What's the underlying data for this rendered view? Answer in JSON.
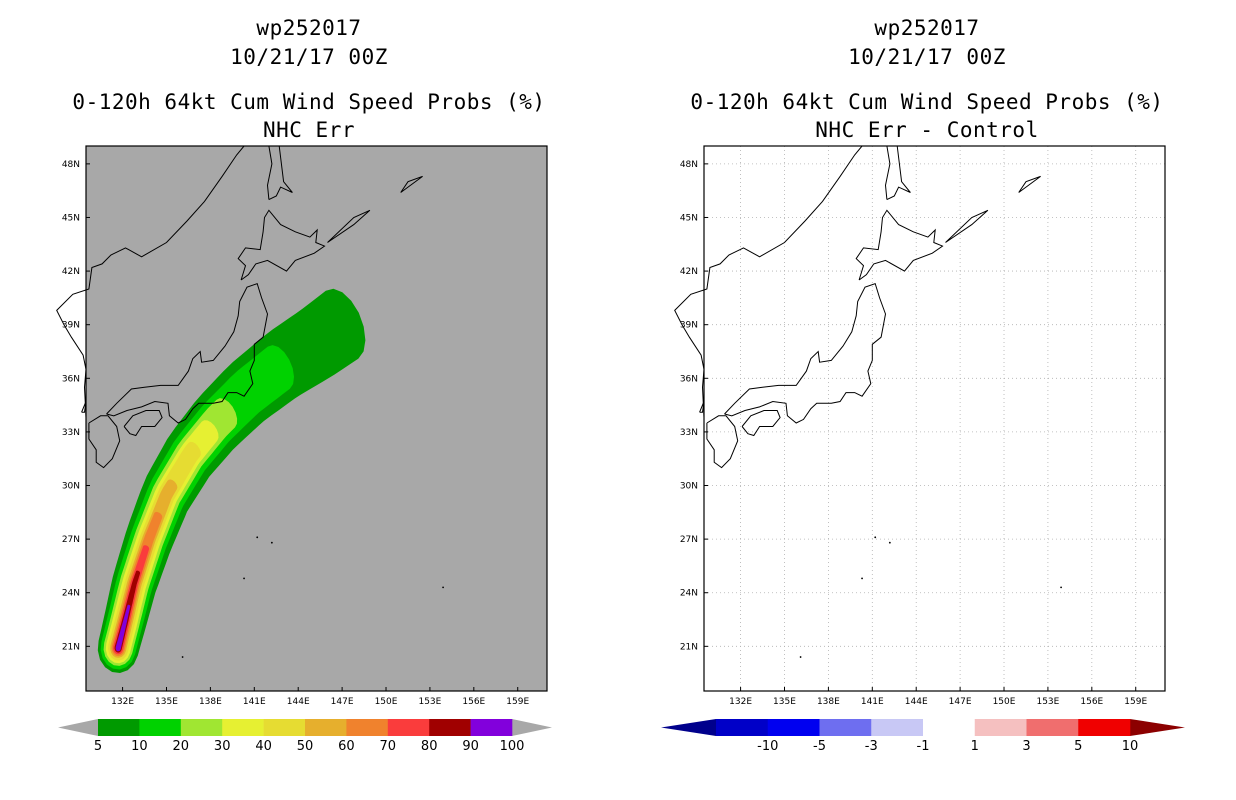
{
  "chart_data": [
    {
      "type": "heatmap",
      "storm_id": "wp252017",
      "date_label": "10/21/17 00Z",
      "title": "0-120h 64kt Cum Wind Speed Probs (%)",
      "subtitle": "NHC Err",
      "x_ticks": [
        "132E",
        "135E",
        "138E",
        "141E",
        "144E",
        "147E",
        "150E",
        "153E",
        "156E",
        "159E"
      ],
      "x_tick_values": [
        132,
        135,
        138,
        141,
        144,
        147,
        150,
        153,
        156,
        159
      ],
      "y_ticks": [
        "21N",
        "24N",
        "27N",
        "30N",
        "33N",
        "36N",
        "39N",
        "42N",
        "45N",
        "48N"
      ],
      "y_tick_values": [
        21,
        24,
        27,
        30,
        33,
        36,
        39,
        42,
        45,
        48
      ],
      "xlim": [
        129.5,
        161.0
      ],
      "ylim": [
        18.5,
        49.0
      ],
      "background": "#a8a8a8",
      "colorbar": {
        "labels": [
          "5",
          "10",
          "20",
          "30",
          "40",
          "50",
          "60",
          "70",
          "80",
          "90",
          "100"
        ],
        "colors": [
          "#009a00",
          "#00d200",
          "#a0e632",
          "#e6f032",
          "#e6dc32",
          "#e6af2d",
          "#f0822d",
          "#fa3c3c",
          "#a00000",
          "#8200dc"
        ],
        "end_color": "#a8a8a8"
      },
      "prob_levels": [
        5,
        10,
        20,
        30,
        40,
        50,
        60,
        70,
        80,
        90
      ]
    },
    {
      "type": "heatmap",
      "storm_id": "wp252017",
      "date_label": "10/21/17 00Z",
      "title": "0-120h 64kt Cum Wind Speed Probs (%)",
      "subtitle": "NHC Err - Control",
      "x_ticks": [
        "132E",
        "135E",
        "138E",
        "141E",
        "144E",
        "147E",
        "150E",
        "153E",
        "156E",
        "159E"
      ],
      "x_tick_values": [
        132,
        135,
        138,
        141,
        144,
        147,
        150,
        153,
        156,
        159
      ],
      "y_ticks": [
        "21N",
        "24N",
        "27N",
        "30N",
        "33N",
        "36N",
        "39N",
        "42N",
        "45N",
        "48N"
      ],
      "y_tick_values": [
        21,
        24,
        27,
        30,
        33,
        36,
        39,
        42,
        45,
        48
      ],
      "xlim": [
        129.5,
        161.0
      ],
      "ylim": [
        18.5,
        49.0
      ],
      "background": "#ffffff",
      "colorbar": {
        "labels": [
          "-10",
          "-5",
          "-3",
          "-1",
          "1",
          "3",
          "5",
          "10"
        ],
        "colors": [
          "#0000c8",
          "#0000f0",
          "#6e6ef0",
          "#c8c8f5",
          "#ffffff",
          "#f5c0c0",
          "#f06e6e",
          "#f00000"
        ],
        "low_end_color": "#00008c",
        "high_end_color": "#8c0000"
      }
    }
  ]
}
